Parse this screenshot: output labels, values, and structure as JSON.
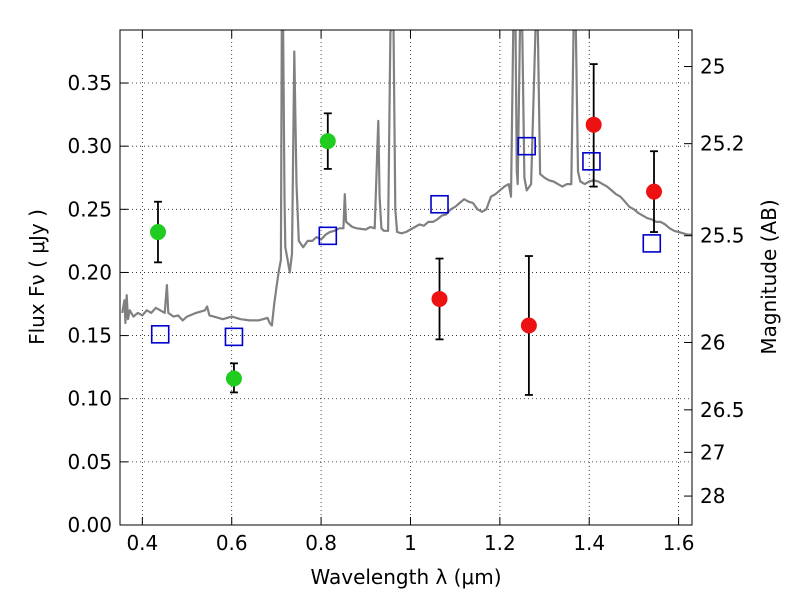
{
  "chart_data": {
    "type": "scatter",
    "xlabel": "Wavelength  λ (μm)",
    "ylabel": "Flux  Fν  ( μJy )",
    "y2label": "Magnitude (AB)",
    "xlim": [
      0.35,
      1.63
    ],
    "ylim": [
      0.0,
      0.392
    ],
    "grid": true,
    "x_ticks": [
      {
        "v": 0.4,
        "label": "0.4"
      },
      {
        "v": 0.6,
        "label": "0.6"
      },
      {
        "v": 0.8,
        "label": "0.8"
      },
      {
        "v": 1.0,
        "label": "1"
      },
      {
        "v": 1.2,
        "label": "1.2"
      },
      {
        "v": 1.4,
        "label": "1.4"
      },
      {
        "v": 1.6,
        "label": "1.6"
      }
    ],
    "y_ticks": [
      {
        "v": 0.0,
        "label": "0.00"
      },
      {
        "v": 0.05,
        "label": "0.05"
      },
      {
        "v": 0.1,
        "label": "0.10"
      },
      {
        "v": 0.15,
        "label": "0.15"
      },
      {
        "v": 0.2,
        "label": "0.20"
      },
      {
        "v": 0.25,
        "label": "0.25"
      },
      {
        "v": 0.3,
        "label": "0.30"
      },
      {
        "v": 0.35,
        "label": "0.35"
      }
    ],
    "y2_ticks": [
      {
        "mag": 25,
        "label": "25"
      },
      {
        "mag": 25.2,
        "label": "25.2"
      },
      {
        "mag": 25.5,
        "label": "25.5"
      },
      {
        "mag": 26,
        "label": "26"
      },
      {
        "mag": 26.5,
        "label": "26.5"
      },
      {
        "mag": 27,
        "label": "27"
      },
      {
        "mag": 28,
        "label": "28"
      }
    ],
    "series": [
      {
        "kind": "line",
        "color": "#808080",
        "points": [
          [
            0.355,
            0.168
          ],
          [
            0.36,
            0.178
          ],
          [
            0.362,
            0.16
          ],
          [
            0.365,
            0.182
          ],
          [
            0.368,
            0.163
          ],
          [
            0.372,
            0.17
          ],
          [
            0.38,
            0.165
          ],
          [
            0.39,
            0.168
          ],
          [
            0.4,
            0.166
          ],
          [
            0.41,
            0.17
          ],
          [
            0.42,
            0.168
          ],
          [
            0.43,
            0.172
          ],
          [
            0.44,
            0.17
          ],
          [
            0.45,
            0.168
          ],
          [
            0.455,
            0.19
          ],
          [
            0.458,
            0.168
          ],
          [
            0.47,
            0.165
          ],
          [
            0.48,
            0.166
          ],
          [
            0.49,
            0.162
          ],
          [
            0.5,
            0.165
          ],
          [
            0.52,
            0.168
          ],
          [
            0.54,
            0.17
          ],
          [
            0.545,
            0.173
          ],
          [
            0.55,
            0.166
          ],
          [
            0.56,
            0.165
          ],
          [
            0.58,
            0.163
          ],
          [
            0.6,
            0.165
          ],
          [
            0.62,
            0.163
          ],
          [
            0.64,
            0.162
          ],
          [
            0.66,
            0.162
          ],
          [
            0.67,
            0.163
          ],
          [
            0.68,
            0.164
          ],
          [
            0.685,
            0.16
          ],
          [
            0.69,
            0.158
          ],
          [
            0.695,
            0.175
          ],
          [
            0.7,
            0.188
          ],
          [
            0.705,
            0.2
          ],
          [
            0.71,
            0.21
          ],
          [
            0.712,
            0.395
          ],
          [
            0.715,
            0.395
          ],
          [
            0.718,
            0.26
          ],
          [
            0.72,
            0.22
          ],
          [
            0.725,
            0.21
          ],
          [
            0.73,
            0.2
          ],
          [
            0.735,
            0.215
          ],
          [
            0.74,
            0.375
          ],
          [
            0.745,
            0.27
          ],
          [
            0.75,
            0.225
          ],
          [
            0.76,
            0.22
          ],
          [
            0.77,
            0.225
          ],
          [
            0.78,
            0.225
          ],
          [
            0.79,
            0.228
          ],
          [
            0.8,
            0.226
          ],
          [
            0.81,
            0.23
          ],
          [
            0.82,
            0.232
          ],
          [
            0.83,
            0.233
          ],
          [
            0.84,
            0.235
          ],
          [
            0.85,
            0.235
          ],
          [
            0.853,
            0.262
          ],
          [
            0.856,
            0.24
          ],
          [
            0.87,
            0.236
          ],
          [
            0.88,
            0.235
          ],
          [
            0.9,
            0.234
          ],
          [
            0.91,
            0.236
          ],
          [
            0.92,
            0.235
          ],
          [
            0.925,
            0.29
          ],
          [
            0.928,
            0.32
          ],
          [
            0.931,
            0.26
          ],
          [
            0.935,
            0.235
          ],
          [
            0.94,
            0.233
          ],
          [
            0.95,
            0.233
          ],
          [
            0.955,
            0.39
          ],
          [
            0.958,
            0.395
          ],
          [
            0.962,
            0.395
          ],
          [
            0.966,
            0.25
          ],
          [
            0.97,
            0.232
          ],
          [
            0.98,
            0.231
          ],
          [
            0.99,
            0.232
          ],
          [
            1.0,
            0.234
          ],
          [
            1.01,
            0.236
          ],
          [
            1.02,
            0.238
          ],
          [
            1.03,
            0.237
          ],
          [
            1.04,
            0.24
          ],
          [
            1.05,
            0.24
          ],
          [
            1.06,
            0.242
          ],
          [
            1.07,
            0.245
          ],
          [
            1.08,
            0.246
          ],
          [
            1.09,
            0.25
          ],
          [
            1.1,
            0.252
          ],
          [
            1.11,
            0.255
          ],
          [
            1.12,
            0.258
          ],
          [
            1.13,
            0.256
          ],
          [
            1.14,
            0.255
          ],
          [
            1.15,
            0.25
          ],
          [
            1.16,
            0.248
          ],
          [
            1.17,
            0.25
          ],
          [
            1.18,
            0.26
          ],
          [
            1.19,
            0.262
          ],
          [
            1.2,
            0.265
          ],
          [
            1.21,
            0.268
          ],
          [
            1.22,
            0.27
          ],
          [
            1.225,
            0.26
          ],
          [
            1.23,
            0.395
          ],
          [
            1.235,
            0.395
          ],
          [
            1.238,
            0.28
          ],
          [
            1.24,
            0.27
          ],
          [
            1.245,
            0.395
          ],
          [
            1.25,
            0.395
          ],
          [
            1.255,
            0.275
          ],
          [
            1.26,
            0.265
          ],
          [
            1.27,
            0.27
          ],
          [
            1.28,
            0.395
          ],
          [
            1.285,
            0.395
          ],
          [
            1.29,
            0.278
          ],
          [
            1.3,
            0.275
          ],
          [
            1.31,
            0.273
          ],
          [
            1.32,
            0.272
          ],
          [
            1.33,
            0.27
          ],
          [
            1.34,
            0.268
          ],
          [
            1.35,
            0.27
          ],
          [
            1.36,
            0.27
          ],
          [
            1.365,
            0.395
          ],
          [
            1.37,
            0.395
          ],
          [
            1.375,
            0.28
          ],
          [
            1.38,
            0.272
          ],
          [
            1.39,
            0.27
          ],
          [
            1.4,
            0.272
          ],
          [
            1.41,
            0.273
          ],
          [
            1.42,
            0.272
          ],
          [
            1.43,
            0.27
          ],
          [
            1.44,
            0.268
          ],
          [
            1.45,
            0.265
          ],
          [
            1.46,
            0.262
          ],
          [
            1.47,
            0.26
          ],
          [
            1.48,
            0.256
          ],
          [
            1.49,
            0.252
          ],
          [
            1.5,
            0.25
          ],
          [
            1.51,
            0.247
          ],
          [
            1.52,
            0.245
          ],
          [
            1.53,
            0.243
          ],
          [
            1.54,
            0.242
          ],
          [
            1.55,
            0.24
          ],
          [
            1.56,
            0.24
          ],
          [
            1.57,
            0.238
          ],
          [
            1.58,
            0.235
          ],
          [
            1.59,
            0.233
          ],
          [
            1.6,
            0.232
          ],
          [
            1.61,
            0.231
          ],
          [
            1.62,
            0.23
          ],
          [
            1.63,
            0.23
          ]
        ]
      },
      {
        "kind": "points",
        "marker": "circle",
        "color": "#1fcc1f",
        "points": [
          {
            "x": 0.435,
            "y": 0.232,
            "ylo": 0.208,
            "yhi": 0.256
          },
          {
            "x": 0.605,
            "y": 0.116,
            "ylo": 0.105,
            "yhi": 0.128
          },
          {
            "x": 0.815,
            "y": 0.304,
            "ylo": 0.282,
            "yhi": 0.326
          }
        ]
      },
      {
        "kind": "points",
        "marker": "circle",
        "color": "#ee1111",
        "points": [
          {
            "x": 1.065,
            "y": 0.179,
            "ylo": 0.147,
            "yhi": 0.211
          },
          {
            "x": 1.265,
            "y": 0.158,
            "ylo": 0.103,
            "yhi": 0.213
          },
          {
            "x": 1.41,
            "y": 0.317,
            "ylo": 0.268,
            "yhi": 0.365
          },
          {
            "x": 1.545,
            "y": 0.264,
            "ylo": 0.232,
            "yhi": 0.296
          }
        ]
      },
      {
        "kind": "points",
        "marker": "open-square",
        "color": "#0000cc",
        "points": [
          {
            "x": 0.44,
            "y": 0.151
          },
          {
            "x": 0.605,
            "y": 0.149
          },
          {
            "x": 0.815,
            "y": 0.229
          },
          {
            "x": 1.065,
            "y": 0.254
          },
          {
            "x": 1.26,
            "y": 0.3
          },
          {
            "x": 1.405,
            "y": 0.288
          },
          {
            "x": 1.54,
            "y": 0.223
          }
        ]
      }
    ]
  }
}
